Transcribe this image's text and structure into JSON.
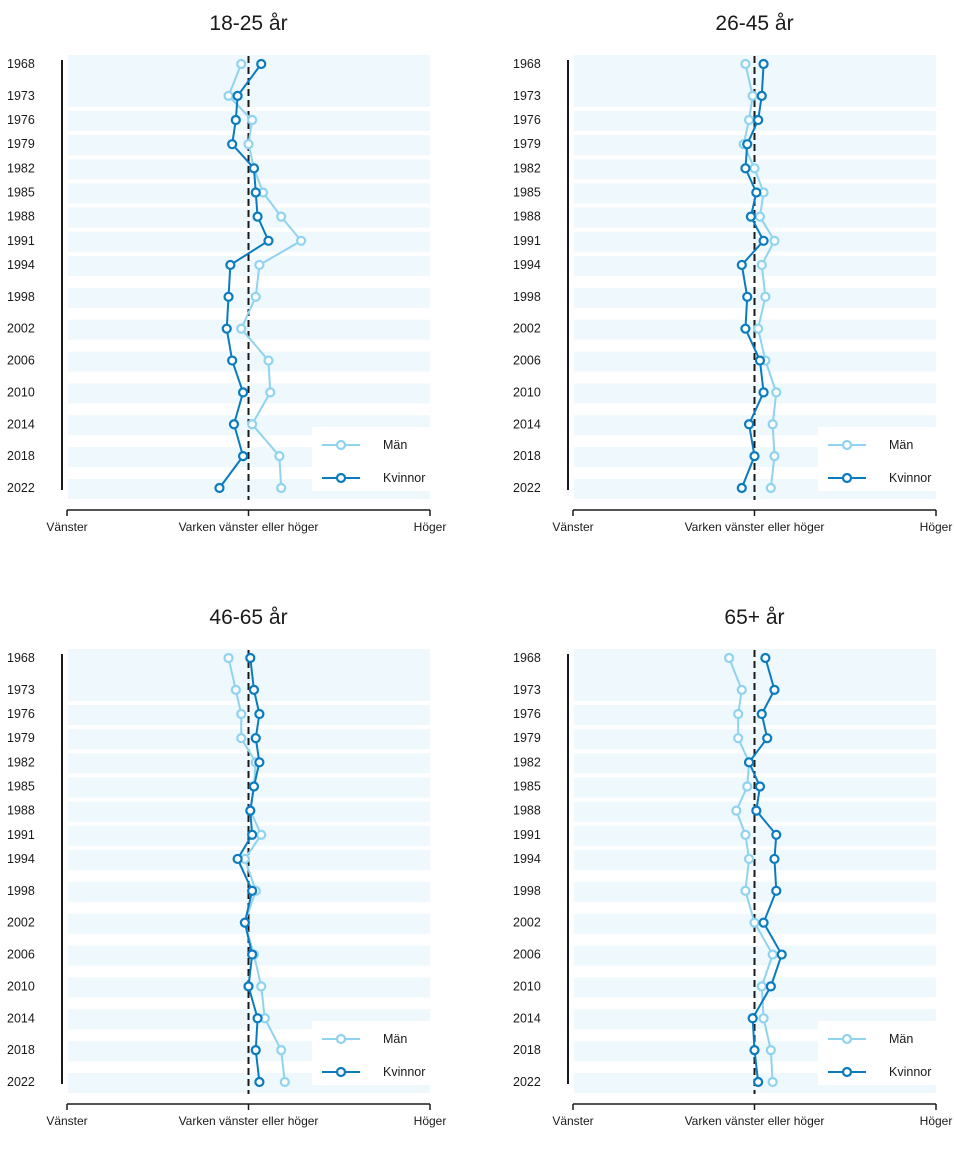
{
  "colors": {
    "men": "#8fd3ef",
    "women": "#0a7bbf",
    "band": "#eef8fd",
    "axis": "#1a1a1a"
  },
  "chart_data": [
    {
      "type": "line",
      "title": "18-25 år",
      "y_categories": [
        "1968",
        "1973",
        "1976",
        "1979",
        "1982",
        "1985",
        "1988",
        "1991",
        "1994",
        "1998",
        "2002",
        "2006",
        "2010",
        "2014",
        "2018",
        "2022"
      ],
      "x_ticks": [
        "Vänster",
        "Varken vänster eller höger",
        "Höger"
      ],
      "xlim": [
        -1,
        1
      ],
      "legend": "bottom-right",
      "series": [
        {
          "name": "Män",
          "values": [
            -0.04,
            -0.11,
            0.02,
            0.0,
            0.03,
            0.08,
            0.18,
            0.29,
            0.06,
            0.04,
            -0.04,
            0.11,
            0.12,
            0.02,
            0.17,
            0.18
          ]
        },
        {
          "name": "Kvinnor",
          "values": [
            0.07,
            -0.06,
            -0.07,
            -0.09,
            0.03,
            0.04,
            0.05,
            0.11,
            -0.1,
            -0.11,
            -0.12,
            -0.09,
            -0.03,
            -0.08,
            -0.03,
            -0.16
          ]
        }
      ]
    },
    {
      "type": "line",
      "title": "26-45 år",
      "y_categories": [
        "1968",
        "1973",
        "1976",
        "1979",
        "1982",
        "1985",
        "1988",
        "1991",
        "1994",
        "1998",
        "2002",
        "2006",
        "2010",
        "2014",
        "2018",
        "2022"
      ],
      "x_ticks": [
        "Vänster",
        "Varken vänster eller höger",
        "Höger"
      ],
      "xlim": [
        -1,
        1
      ],
      "legend": "bottom-right",
      "series": [
        {
          "name": "Män",
          "values": [
            -0.05,
            -0.01,
            -0.03,
            -0.06,
            0.0,
            0.05,
            0.03,
            0.11,
            0.04,
            0.06,
            0.02,
            0.06,
            0.12,
            0.1,
            0.11,
            0.09
          ]
        },
        {
          "name": "Kvinnor",
          "values": [
            0.05,
            0.04,
            0.02,
            -0.04,
            -0.05,
            0.01,
            -0.02,
            0.05,
            -0.07,
            -0.04,
            -0.05,
            0.03,
            0.05,
            -0.03,
            0.0,
            -0.07
          ]
        }
      ]
    },
    {
      "type": "line",
      "title": "46-65 år",
      "y_categories": [
        "1968",
        "1973",
        "1976",
        "1979",
        "1982",
        "1985",
        "1988",
        "1991",
        "1994",
        "1998",
        "2002",
        "2006",
        "2010",
        "2014",
        "2018",
        "2022"
      ],
      "x_ticks": [
        "Vänster",
        "Varken vänster eller höger",
        "Höger"
      ],
      "xlim": [
        -1,
        1
      ],
      "legend": "bottom-right",
      "series": [
        {
          "name": "Män",
          "values": [
            -0.11,
            -0.07,
            -0.04,
            -0.04,
            0.04,
            0.03,
            0.01,
            0.07,
            -0.02,
            0.04,
            -0.02,
            0.03,
            0.07,
            0.09,
            0.18,
            0.2
          ]
        },
        {
          "name": "Kvinnor",
          "values": [
            0.01,
            0.03,
            0.06,
            0.04,
            0.06,
            0.03,
            0.01,
            0.02,
            -0.06,
            0.02,
            -0.02,
            0.02,
            0.0,
            0.05,
            0.04,
            0.06
          ]
        }
      ]
    },
    {
      "type": "line",
      "title": "65+ år",
      "y_categories": [
        "1968",
        "1973",
        "1976",
        "1979",
        "1982",
        "1985",
        "1988",
        "1991",
        "1994",
        "1998",
        "2002",
        "2006",
        "2010",
        "2014",
        "2018",
        "2022"
      ],
      "x_ticks": [
        "Vänster",
        "Varken vänster eller höger",
        "Höger"
      ],
      "xlim": [
        -1,
        1
      ],
      "legend": "bottom-right",
      "series": [
        {
          "name": "Män",
          "values": [
            -0.14,
            -0.07,
            -0.09,
            -0.09,
            -0.03,
            -0.04,
            -0.1,
            -0.05,
            -0.03,
            -0.05,
            0.0,
            0.1,
            0.04,
            0.05,
            0.09,
            0.1
          ]
        },
        {
          "name": "Kvinnor",
          "values": [
            0.06,
            0.11,
            0.04,
            0.07,
            -0.03,
            0.03,
            0.01,
            0.12,
            0.11,
            0.12,
            0.05,
            0.15,
            0.09,
            -0.01,
            0.0,
            0.02
          ]
        }
      ]
    }
  ]
}
